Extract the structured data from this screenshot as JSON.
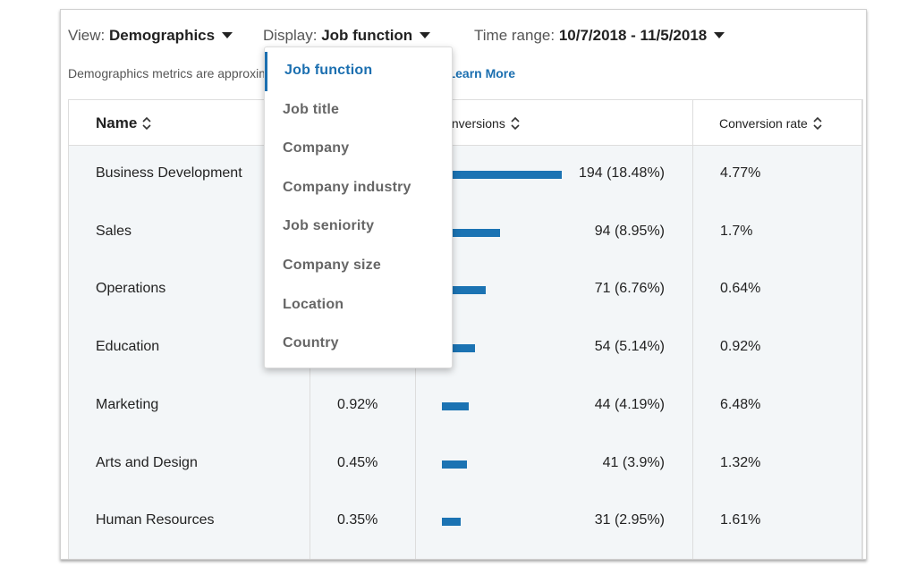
{
  "toolbar": {
    "view_label": "View:",
    "view_value": "Demographics",
    "display_label": "Display:",
    "display_value": "Job function",
    "time_label": "Time range:",
    "time_value": "10/7/2018 - 11/5/2018"
  },
  "notice": {
    "text": "Demographics metrics are approximated to protect member privacy.",
    "link": "Learn More"
  },
  "table": {
    "headers": {
      "name": "Name",
      "conversions": "Conversions",
      "rate": "Conversion rate"
    },
    "rows": [
      {
        "name": "Business Development",
        "conversions": 194,
        "conversions_label": "194 (18.48%)",
        "rate": "4.77%"
      },
      {
        "name": "Sales",
        "conversions": 94,
        "conversions_label": "94 (8.95%)",
        "rate": "1.7%"
      },
      {
        "name": "Operations",
        "conversions": 71,
        "conversions_label": "71 (6.76%)",
        "rate": "0.64%"
      },
      {
        "name": "Education",
        "conversions": 54,
        "conversions_label": "54 (5.14%)",
        "rate": "0.92%"
      },
      {
        "name": "Marketing",
        "share": "0.92%",
        "conversions": 44,
        "conversions_label": "44 (4.19%)",
        "rate": "6.48%"
      },
      {
        "name": "Arts and Design",
        "share": "0.45%",
        "conversions": 41,
        "conversions_label": "41 (3.9%)",
        "rate": "1.32%"
      },
      {
        "name": "Human Resources",
        "share": "0.35%",
        "conversions": 31,
        "conversions_label": "31 (2.95%)",
        "rate": "1.61%"
      }
    ]
  },
  "dropdown": {
    "items": [
      "Job function",
      "Job title",
      "Company",
      "Company industry",
      "Job seniority",
      "Company size",
      "Location",
      "Country"
    ],
    "selected": 0
  }
}
